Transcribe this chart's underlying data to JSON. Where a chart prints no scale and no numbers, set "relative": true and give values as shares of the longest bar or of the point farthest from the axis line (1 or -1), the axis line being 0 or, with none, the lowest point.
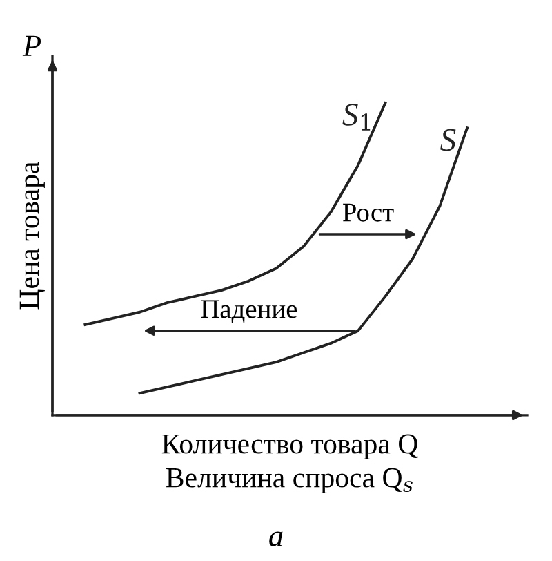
{
  "chart_data": {
    "type": "line",
    "relative": true,
    "xlabel": "Количество товара Q\nВеличина спроса Q$_{s}$",
    "ylabel": "Цена товара",
    "marker": "none",
    "line_style": "solid",
    "categories": [
      null,
      null,
      null,
      null,
      null,
      null,
      null,
      null,
      null,
      null,
      null,
      null,
      null,
      null,
      null
    ],
    "series": [
      {
        "name": "S$_{1}$",
        "color": "#222222",
        "values": [
          0.29,
          0.31,
          0.33,
          0.36,
          0.38,
          0.4,
          0.43,
          0.47,
          0.54,
          0.65,
          0.8,
          1.0,
          null,
          null,
          null
        ]
      },
      {
        "name": "S",
        "color": "#222222",
        "values": [
          null,
          null,
          0.07,
          0.09,
          0.11,
          0.13,
          0.15,
          0.17,
          0.2,
          0.23,
          0.27,
          0.38,
          0.5,
          0.67,
          0.92
        ]
      }
    ],
    "annotations": [
      "P",
      "Рост",
      "Падение",
      "а"
    ]
  }
}
